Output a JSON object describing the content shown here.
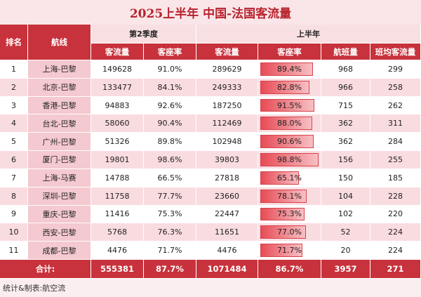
{
  "header": {
    "title": "2025上半年 中国-法国客流量"
  },
  "table": {
    "group_headers": [
      "排名",
      "航线",
      "第2季度",
      "上半年"
    ],
    "columns": [
      "客流量",
      "客座率",
      "客流量",
      "客座率",
      "航班量",
      "班均客流量"
    ],
    "rows": [
      [
        1,
        "上海-巴黎",
        149628,
        "91.0%",
        289629,
        "89.4%",
        968,
        299
      ],
      [
        2,
        "北京-巴黎",
        133477,
        "84.1%",
        249333,
        "82.8%",
        966,
        258
      ],
      [
        3,
        "香港-巴黎",
        94883,
        "92.6%",
        187250,
        "91.5%",
        715,
        262
      ],
      [
        4,
        "台北-巴黎",
        58060,
        "90.4%",
        112469,
        "88.0%",
        362,
        311
      ],
      [
        5,
        "广州-巴黎",
        51326,
        "89.8%",
        102948,
        "90.6%",
        362,
        284
      ],
      [
        6,
        "厦门-巴黎",
        19801,
        "98.6%",
        39803,
        "98.8%",
        156,
        255
      ],
      [
        7,
        "上海-马赛",
        14788,
        "66.5%",
        27818,
        "65.1%",
        150,
        185
      ],
      [
        8,
        "深圳-巴黎",
        11758,
        "77.7%",
        23660,
        "78.1%",
        104,
        228
      ],
      [
        9,
        "重庆-巴黎",
        11416,
        "75.3%",
        22447,
        "75.3%",
        102,
        220
      ],
      [
        10,
        "西安-巴黎",
        5768,
        "76.3%",
        11651,
        "77.0%",
        52,
        224
      ],
      [
        11,
        "成都-巴黎",
        4476,
        "71.7%",
        4476,
        "71.7%",
        20,
        224
      ]
    ],
    "total": {
      "label": "合计:",
      "values": [
        555381,
        "87.7%",
        1071484,
        "86.7%",
        3957,
        271
      ]
    }
  },
  "footer": "统计&制表:航空流"
}
